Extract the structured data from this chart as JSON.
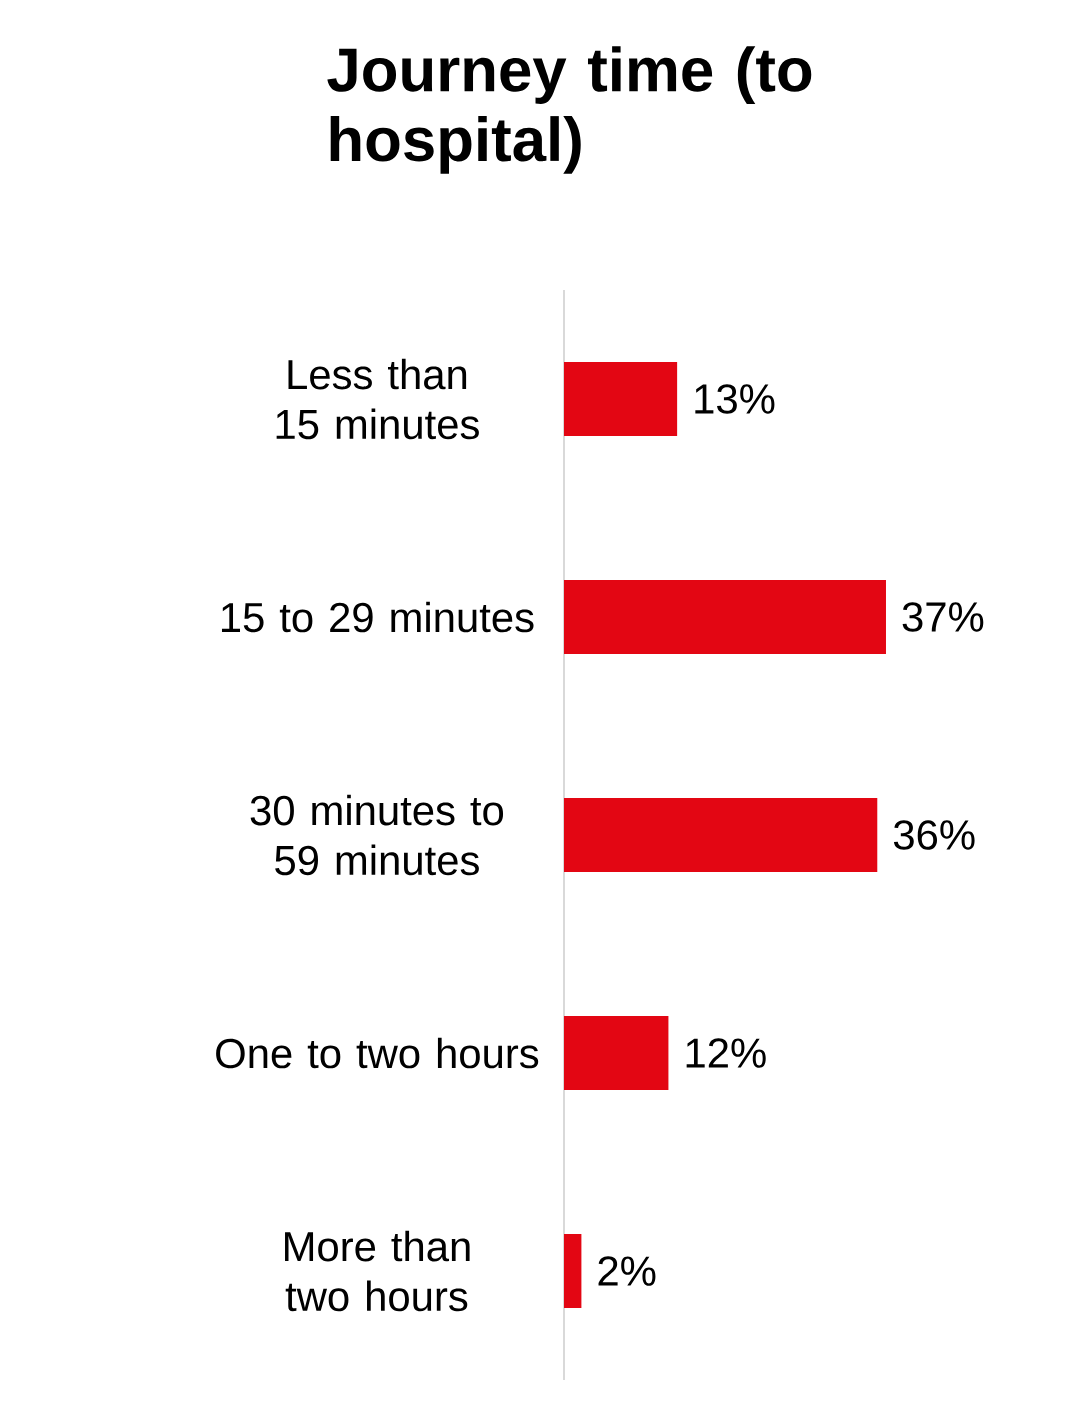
{
  "chart_data": {
    "type": "bar",
    "orientation": "horizontal",
    "title": "Journey time (to hospital)",
    "categories": [
      "Less than 15 minutes",
      "15 to 29 minutes",
      "30 minutes to 59 minutes",
      "One to two hours",
      "More than two hours"
    ],
    "values": [
      13,
      37,
      36,
      12,
      2
    ],
    "value_labels": [
      "13%",
      "37%",
      "36%",
      "12%",
      "2%"
    ],
    "color": "#e30613"
  }
}
